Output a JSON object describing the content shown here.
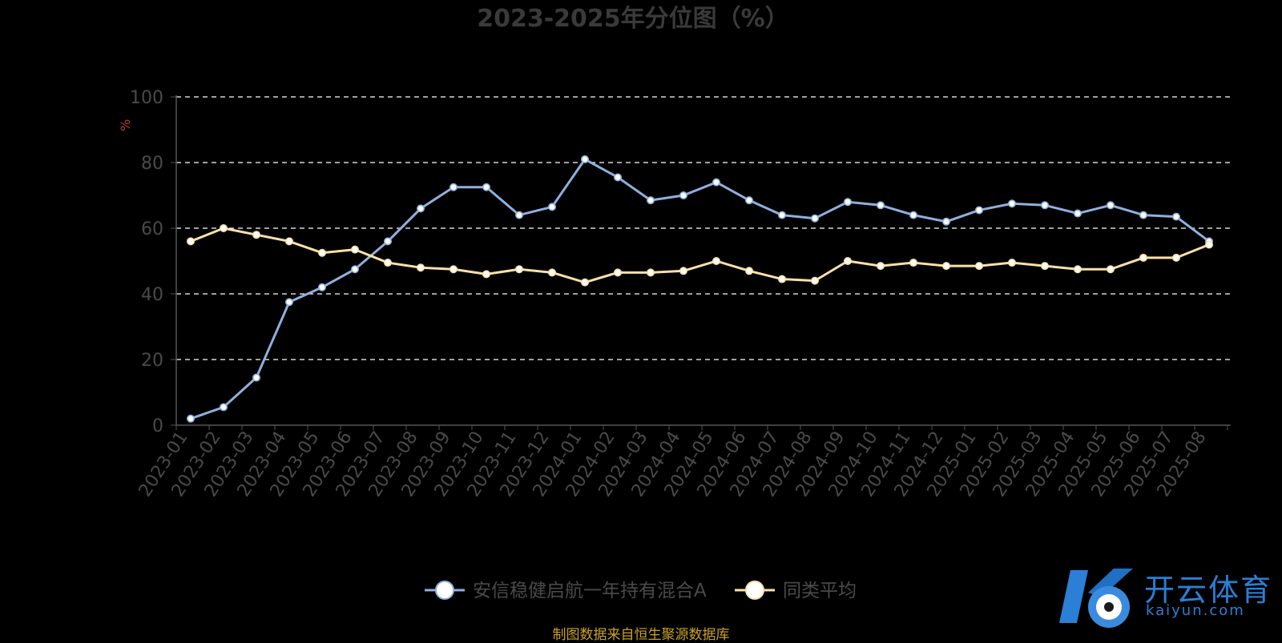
{
  "chart_data": {
    "type": "line",
    "title": "2023-2025年分位图（%）",
    "ylabel": "%",
    "ylim": [
      0,
      100
    ],
    "yticks": [
      0,
      20,
      40,
      60,
      80,
      100
    ],
    "grid": true,
    "legend_position": "bottom",
    "x": [
      "2023-01",
      "2023-02",
      "2023-03",
      "2023-04",
      "2023-05",
      "2023-06",
      "2023-07",
      "2023-08",
      "2023-09",
      "2023-10",
      "2023-11",
      "2023-12",
      "2024-01",
      "2024-02",
      "2024-03",
      "2024-04",
      "2024-05",
      "2024-06",
      "2024-07",
      "2024-08",
      "2024-09",
      "2024-10",
      "2024-11",
      "2024-12",
      "2025-01",
      "2025-02",
      "2025-03",
      "2025-04",
      "2025-05",
      "2025-06",
      "2025-07",
      "2025-08"
    ],
    "series": [
      {
        "name": "安信稳健启航一年持有混合A",
        "color": "#8fb0de",
        "values": [
          2,
          5.5,
          14.5,
          37.5,
          42,
          47.5,
          56,
          66,
          72.5,
          72.5,
          64,
          66.5,
          81,
          75.5,
          68.5,
          70,
          74,
          68.5,
          64,
          63,
          68,
          67,
          64,
          62,
          65.5,
          67.5,
          67,
          64.5,
          67,
          64,
          63.5,
          56
        ]
      },
      {
        "name": "同类平均",
        "color": "#fbe0a8",
        "values": [
          56,
          60,
          58,
          56,
          52.5,
          53.5,
          49.5,
          48,
          47.5,
          46,
          47.5,
          46.5,
          43.5,
          46.5,
          46.5,
          47,
          50,
          47,
          44.5,
          44,
          50,
          48.5,
          49.5,
          48.5,
          48.5,
          49.5,
          48.5,
          47.5,
          47.5,
          51,
          51,
          55
        ]
      }
    ]
  },
  "footer": {
    "source": "制图数据来自恒生聚源数据库"
  },
  "watermark": {
    "brand": "开云体育",
    "domain": "kaiyun.com"
  }
}
